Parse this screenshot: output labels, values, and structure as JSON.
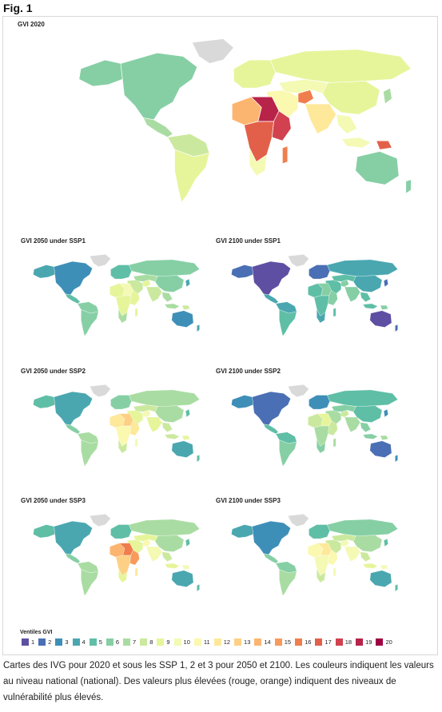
{
  "figure_label": "Fig. 1",
  "maps": [
    {
      "id": "gvi2020",
      "title": "GVI 2020",
      "scheme": "2020"
    },
    {
      "id": "ssp1_2050",
      "title": "GVI 2050 under SSP1",
      "scheme": "ssp1_2050"
    },
    {
      "id": "ssp1_2100",
      "title": "GVI 2100 under SSP1",
      "scheme": "ssp1_2100"
    },
    {
      "id": "ssp2_2050",
      "title": "GVI 2050 under SSP2",
      "scheme": "ssp2_2050"
    },
    {
      "id": "ssp2_2100",
      "title": "GVI 2100 under SSP2",
      "scheme": "ssp2_2100"
    },
    {
      "id": "ssp3_2050",
      "title": "GVI 2050 under SSP3",
      "scheme": "ssp3_2050"
    },
    {
      "id": "ssp3_2100",
      "title": "GVI 2100 under SSP3",
      "scheme": "ssp3_2100"
    }
  ],
  "legend": {
    "title": "Ventiles GVI",
    "items": [
      {
        "label": "1",
        "color": "#5e4fa2"
      },
      {
        "label": "2",
        "color": "#4a6fb4"
      },
      {
        "label": "3",
        "color": "#3e8fb8"
      },
      {
        "label": "4",
        "color": "#4aa7b0"
      },
      {
        "label": "5",
        "color": "#5fbea6"
      },
      {
        "label": "6",
        "color": "#86cfa5"
      },
      {
        "label": "7",
        "color": "#a9dca2"
      },
      {
        "label": "8",
        "color": "#cbe99e"
      },
      {
        "label": "9",
        "color": "#e6f59a"
      },
      {
        "label": "10",
        "color": "#f4f9b4"
      },
      {
        "label": "11",
        "color": "#fbf8b0"
      },
      {
        "label": "12",
        "color": "#fee89a"
      },
      {
        "label": "13",
        "color": "#fdd085"
      },
      {
        "label": "14",
        "color": "#fcb570"
      },
      {
        "label": "15",
        "color": "#f89a5c"
      },
      {
        "label": "16",
        "color": "#f07e4d"
      },
      {
        "label": "17",
        "color": "#e2604a"
      },
      {
        "label": "18",
        "color": "#d1414f"
      },
      {
        "label": "19",
        "color": "#b8234a"
      },
      {
        "label": "20",
        "color": "#9e0142"
      }
    ]
  },
  "caption": "Cartes des IVG pour 2020 et sous les SSP 1, 2 et 3 pour 2050 et 2100. Les couleurs indiquent les valeurs au niveau national (national). Des valeurs plus élevées (rouge, orange) indiquent des niveaux de vulnérabilité plus élevés.",
  "no_data_color": "#d9d9d9"
}
